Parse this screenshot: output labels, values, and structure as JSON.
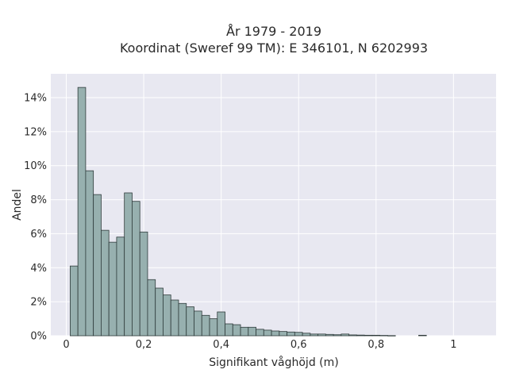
{
  "chart_data": {
    "type": "bar",
    "title_line1": "År 1979 - 2019",
    "title_line2": "Koordinat (Sweref 99 TM): E 346101, N 6202993",
    "xlabel": "Signifikant våghöjd (m)",
    "ylabel": "Andel",
    "xlim": [
      -0.04,
      1.11
    ],
    "ylim": [
      0,
      15.4
    ],
    "x_ticks": [
      0,
      0.2,
      0.4,
      0.6,
      0.8,
      1
    ],
    "x_tick_labels": [
      "0",
      "0,2",
      "0,4",
      "0,6",
      "0,8",
      "1"
    ],
    "y_ticks": [
      0,
      2,
      4,
      6,
      8,
      10,
      12,
      14
    ],
    "y_tick_labels": [
      "0%",
      "2%",
      "4%",
      "6%",
      "8%",
      "10%",
      "12%",
      "14%"
    ],
    "grid": true,
    "bin_start": 0.01,
    "bin_width": 0.02,
    "values": [
      4.1,
      14.6,
      9.7,
      8.3,
      6.2,
      5.5,
      5.8,
      8.4,
      7.9,
      6.1,
      3.3,
      2.8,
      2.4,
      2.1,
      1.9,
      1.7,
      1.45,
      1.2,
      1.0,
      1.4,
      0.7,
      0.65,
      0.5,
      0.5,
      0.38,
      0.33,
      0.28,
      0.25,
      0.22,
      0.2,
      0.15,
      0.1,
      0.1,
      0.08,
      0.06,
      0.1,
      0.05,
      0.04,
      0.03,
      0.03,
      0.02,
      0.01,
      0.0,
      0.0,
      0.0,
      0.03,
      0.0,
      0.0,
      0.0,
      0.0
    ],
    "colors": {
      "bar_fill": "#97b0af",
      "bar_stroke": "#2f3b3b",
      "plot_bg": "#e8e8f1",
      "grid": "#ffffff"
    }
  }
}
